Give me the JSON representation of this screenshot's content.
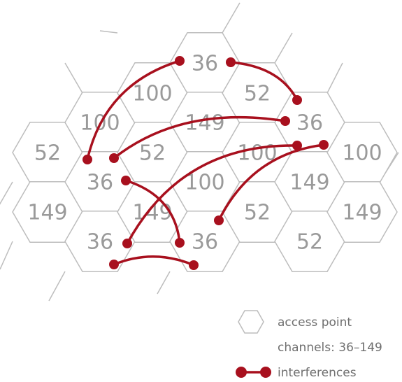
{
  "hexagons": [
    "52",
    "149",
    "100",
    "36",
    "36",
    "100",
    "52",
    "149",
    "36",
    "149",
    "100",
    "36",
    "52",
    "100",
    "52",
    "36",
    "149",
    "52",
    "100",
    "149"
  ],
  "legend": {
    "access_point": "access point",
    "channels": "channels: 36–149",
    "interferences": "interferences"
  }
}
